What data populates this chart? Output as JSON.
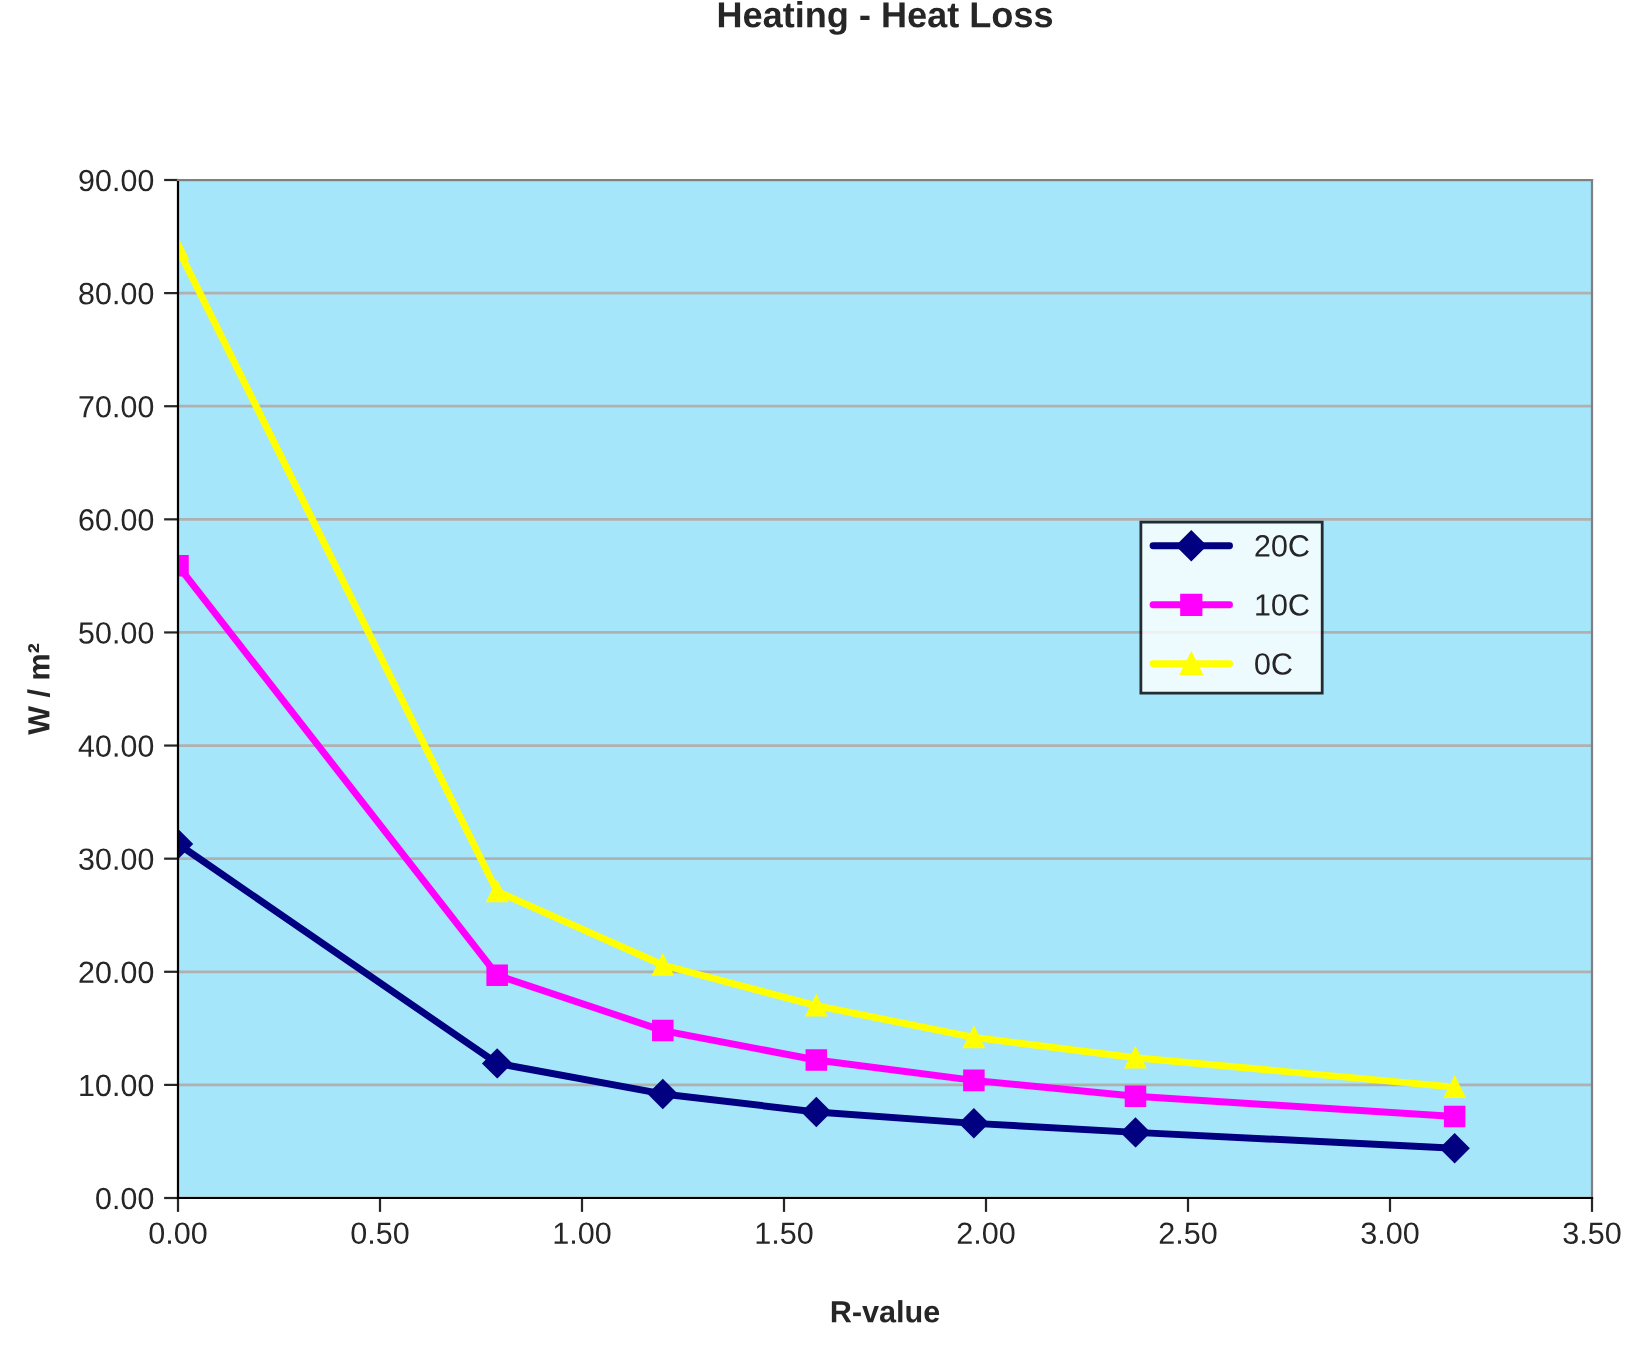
{
  "chart_data": {
    "type": "line",
    "title": "Heating - Heat Loss",
    "xlabel": "R-value",
    "ylabel": "W / m²",
    "x": [
      0,
      0.79,
      1.2,
      1.58,
      1.97,
      2.37,
      3.16
    ],
    "series": [
      {
        "name": "20C",
        "color": "#000080",
        "marker": "diamond",
        "values": [
          31.3,
          11.9,
          9.2,
          7.6,
          6.6,
          5.8,
          4.4
        ]
      },
      {
        "name": "10C",
        "color": "#ff00ff",
        "marker": "square",
        "values": [
          55.9,
          19.7,
          14.8,
          12.2,
          10.4,
          9.0,
          7.2
        ]
      },
      {
        "name": "0C",
        "color": "#ffff00",
        "marker": "triangle",
        "values": [
          83.9,
          27.1,
          20.6,
          17.0,
          14.2,
          12.4,
          9.8
        ]
      }
    ],
    "xlim": [
      0,
      3.5
    ],
    "xticks": [
      {
        "value": 0,
        "label": "0.00"
      },
      {
        "value": 0.5,
        "label": "0.50"
      },
      {
        "value": 1,
        "label": "1.00"
      },
      {
        "value": 1.5,
        "label": "1.50"
      },
      {
        "value": 2,
        "label": "2.00"
      },
      {
        "value": 2.5,
        "label": "2.50"
      },
      {
        "value": 3,
        "label": "3.00"
      },
      {
        "value": 3.5,
        "label": "3.50"
      }
    ],
    "ylim": [
      0,
      90
    ],
    "yticks": [
      {
        "value": 0,
        "label": "0.00"
      },
      {
        "value": 10,
        "label": "10.00"
      },
      {
        "value": 20,
        "label": "20.00"
      },
      {
        "value": 30,
        "label": "30.00"
      },
      {
        "value": 40,
        "label": "40.00"
      },
      {
        "value": 50,
        "label": "50.00"
      },
      {
        "value": 60,
        "label": "60.00"
      },
      {
        "value": 70,
        "label": "70.00"
      },
      {
        "value": 80,
        "label": "80.00"
      },
      {
        "value": 90,
        "label": "90.00"
      }
    ],
    "grid": "y",
    "legend": "right",
    "line_style": "solid"
  }
}
